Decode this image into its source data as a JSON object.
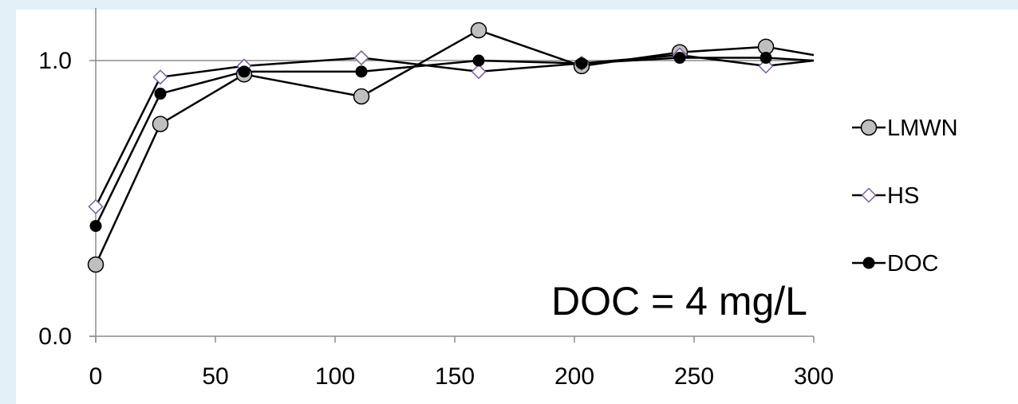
{
  "chart_data": {
    "type": "line",
    "title": "",
    "xlabel": "",
    "ylabel": "",
    "xlim": [
      0,
      300
    ],
    "ylim": [
      0,
      1
    ],
    "x_ticks": [
      "0",
      "50",
      "100",
      "150",
      "200",
      "250",
      "300"
    ],
    "y_ticks": [
      "0.0",
      "1.0"
    ],
    "x_tick_values": [
      0,
      50,
      100,
      150,
      200,
      250,
      300
    ],
    "y_tick_values": [
      0,
      1
    ],
    "grid": "horizontal at 1.0",
    "legend": "right",
    "annotation": "DOC = 4 mg/L",
    "series": [
      {
        "name": "LMWN",
        "marker": "circle-gray",
        "color": "#000000",
        "marker_fill": "#bfbfbf",
        "x": [
          0,
          27,
          62,
          111,
          160,
          203,
          244,
          280,
          300
        ],
        "y": [
          0.26,
          0.77,
          0.95,
          0.87,
          1.11,
          0.98,
          1.03,
          1.05,
          1.02
        ]
      },
      {
        "name": "HS",
        "marker": "diamond-open",
        "color": "#000000",
        "marker_stroke": "#7a5f96",
        "x": [
          0,
          27,
          62,
          111,
          160,
          203,
          244,
          280,
          300
        ],
        "y": [
          0.47,
          0.94,
          0.98,
          1.01,
          0.96,
          0.99,
          1.02,
          0.98,
          1.0
        ]
      },
      {
        "name": "DOC",
        "marker": "circle-black",
        "color": "#000000",
        "marker_fill": "#000000",
        "x": [
          0,
          27,
          62,
          111,
          160,
          203,
          244,
          280,
          300
        ],
        "y": [
          0.4,
          0.88,
          0.96,
          0.96,
          1.0,
          0.99,
          1.01,
          1.01,
          1.0
        ]
      }
    ]
  }
}
